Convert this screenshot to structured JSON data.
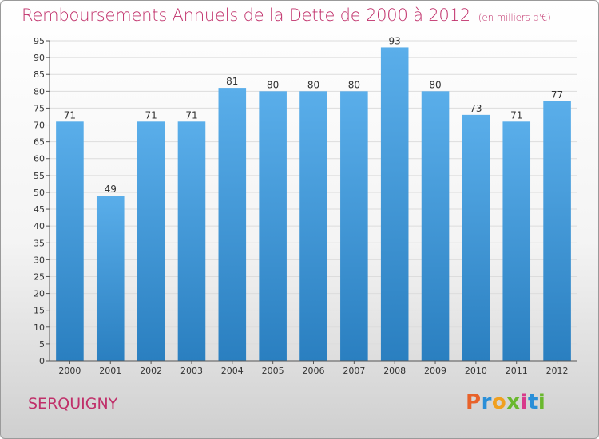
{
  "header": {
    "title": "Remboursements Annuels de la Dette de 2000 à 2012",
    "unit": "(en milliers d'€)"
  },
  "footer": {
    "commune": "SERQUIGNY",
    "logo_text": "Proxiti"
  },
  "colors": {
    "title": "#c0306a",
    "bar_top": "#5aaeea",
    "bar_bottom": "#2a7fc0",
    "axis_labels": "#c0306a"
  },
  "chart_data": {
    "type": "bar",
    "title": "Remboursements Annuels de la Dette de 2000 à 2012",
    "xlabel": "",
    "ylabel": "",
    "categories": [
      "2000",
      "2001",
      "2002",
      "2003",
      "2004",
      "2005",
      "2006",
      "2007",
      "2008",
      "2009",
      "2010",
      "2011",
      "2012"
    ],
    "values": [
      71,
      49,
      71,
      71,
      81,
      80,
      80,
      80,
      93,
      80,
      73,
      71,
      77
    ],
    "data_labels": [
      "71",
      "49",
      "71",
      "71",
      "81",
      "80",
      "80",
      "80",
      "93",
      "80",
      "73",
      "71",
      "77"
    ],
    "ylim": [
      0,
      95
    ],
    "yticks": [
      0,
      5,
      10,
      15,
      20,
      25,
      30,
      35,
      40,
      45,
      50,
      55,
      60,
      65,
      70,
      75,
      80,
      85,
      90,
      95
    ],
    "grid": true,
    "legend": "none"
  }
}
